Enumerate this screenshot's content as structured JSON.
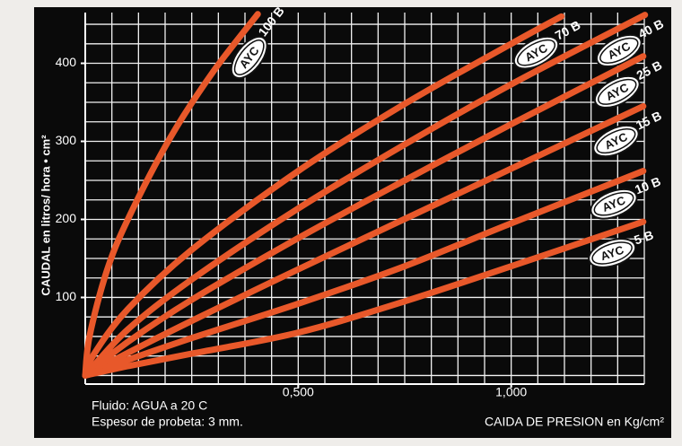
{
  "chart_data": {
    "type": "line",
    "y_label": "CAUDAL en litros/ hora • cm²",
    "x_label": "CAIDA DE PRESION en Kg/cm²",
    "notes": [
      "Fluido: AGUA a 20 C",
      "Espesor de probeta: 3 mm."
    ],
    "brand": "AYC",
    "xlim": [
      0,
      1.3125
    ],
    "ylim": [
      -11,
      465
    ],
    "xticks": [
      {
        "value": 0.5,
        "label": "0,500"
      },
      {
        "value": 1.0,
        "label": "1,000"
      }
    ],
    "yticks": [
      100,
      200,
      300,
      400
    ],
    "minor_xticks": [
      0.0625,
      0.125,
      0.1875,
      0.25,
      0.3125,
      0.375,
      0.4375,
      0.5,
      0.5625,
      0.625,
      0.6875,
      0.75,
      0.8125,
      0.875,
      0.9375,
      1.0,
      1.0625,
      1.125,
      1.1875,
      1.25,
      1.3125
    ],
    "minor_yticks": [
      0,
      25,
      50,
      75,
      100,
      125,
      150,
      175,
      200,
      225,
      250,
      275,
      300,
      325,
      350,
      375,
      400,
      425,
      450
    ],
    "grid": true,
    "series": [
      {
        "name": "100 B",
        "color": "#e8582a",
        "x": [
          0,
          0.01,
          0.05,
          0.1,
          0.2,
          0.3,
          0.405
        ],
        "values": [
          0,
          50,
          133,
          200,
          305,
          389,
          463
        ]
      },
      {
        "name": "70 B",
        "color": "#e8582a",
        "x": [
          0,
          0.02,
          0.1,
          0.25,
          0.5,
          0.75,
          1.0,
          1.118
        ],
        "values": [
          0,
          27,
          85,
          161,
          262,
          348,
          425,
          460
        ]
      },
      {
        "name": "40 B",
        "color": "#e8582a",
        "x": [
          0,
          0.1,
          0.25,
          0.5,
          0.75,
          1.0,
          1.314
        ],
        "values": [
          0,
          59,
          123,
          214,
          296,
          373,
          462
        ]
      },
      {
        "name": "25 B",
        "color": "#e8582a",
        "x": [
          0,
          0.1,
          0.25,
          0.5,
          0.75,
          1.0,
          1.31
        ],
        "values": [
          0,
          43,
          97,
          176,
          250,
          322,
          409
        ]
      },
      {
        "name": "15 B",
        "color": "#e8582a",
        "x": [
          0,
          0.1,
          0.25,
          0.5,
          1.0,
          1.31
        ],
        "values": [
          0,
          29,
          70,
          136,
          265,
          345
        ]
      },
      {
        "name": "10 B",
        "color": "#e8582a",
        "x": [
          0,
          0.1,
          0.25,
          0.5,
          0.75,
          1.0,
          1.31
        ],
        "values": [
          0,
          20,
          48,
          92,
          140,
          195,
          262
        ]
      },
      {
        "name": "5 B",
        "color": "#e8582a",
        "x": [
          0,
          0.1,
          0.25,
          0.5,
          0.75,
          1.0,
          1.31
        ],
        "values": [
          0,
          12,
          28,
          55,
          95,
          140,
          197
        ]
      }
    ]
  }
}
